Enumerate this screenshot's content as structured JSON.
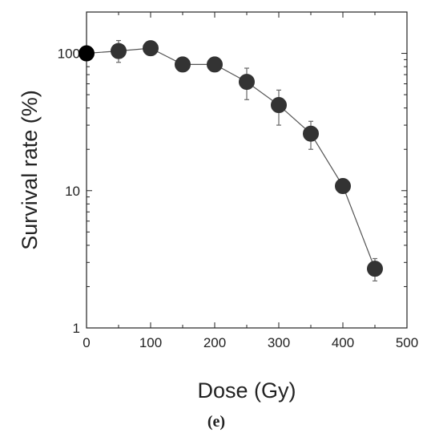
{
  "chart_data": {
    "type": "scatter",
    "title": "",
    "xlabel": "Dose (Gy)",
    "ylabel": "Survival rate (%)",
    "xlim": [
      0,
      500
    ],
    "ylim": [
      1,
      200
    ],
    "yscale": "log",
    "grid": false,
    "x_ticks": [
      "0",
      "100",
      "200",
      "300",
      "400",
      "500"
    ],
    "y_ticks": [
      "1",
      "10",
      "100"
    ],
    "series": [
      {
        "connected": true,
        "x": [
          0,
          50,
          100,
          150,
          200,
          250,
          300,
          350,
          400,
          450
        ],
        "y": [
          100,
          104,
          109,
          83,
          83,
          62,
          42,
          26,
          10.8,
          2.7
        ],
        "err_low": [
          0,
          86,
          0,
          0,
          0,
          46,
          30,
          20,
          0,
          2.2
        ],
        "err_high": [
          0,
          124,
          0,
          0,
          0,
          78,
          54,
          32,
          0,
          3.2
        ]
      }
    ],
    "colors": {
      "marker": "#333333",
      "first_marker": "#000000",
      "line": "#555555",
      "axis": "#222222"
    }
  },
  "panel_label": "(e)"
}
